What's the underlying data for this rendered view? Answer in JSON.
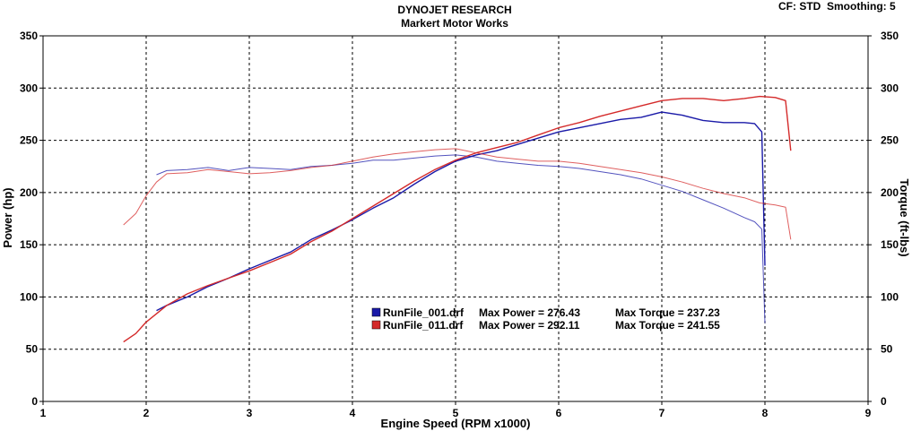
{
  "header": {
    "title": "DYNOJET RESEARCH",
    "subtitle": "Markert Motor Works",
    "cf_label": "CF: STD",
    "smoothing_label": "Smoothing: 5"
  },
  "colors": {
    "run_001": "#1a1aa8",
    "run_011": "#d42a2a",
    "grid": "#000000",
    "background": "#ffffff"
  },
  "legend": [
    {
      "file": "RunFile_001.drf",
      "power_label": "Max Power = 276.43",
      "torque_label": "Max Torque = 237.23",
      "color_key": "run_001"
    },
    {
      "file": "RunFile_011.drf",
      "power_label": "Max Power = 292.11",
      "torque_label": "Max Torque = 241.55",
      "color_key": "run_011"
    }
  ],
  "chart_data": {
    "type": "line",
    "xlabel": "Engine Speed (RPM x1000)",
    "ylabel_left": "Power (hp)",
    "ylabel_right": "Torque (ft-lbs)",
    "xlim": [
      1,
      9
    ],
    "ylim": [
      0,
      350
    ],
    "x_ticks": [
      "1",
      "2",
      "3",
      "4",
      "5",
      "6",
      "7",
      "8",
      "9"
    ],
    "y_ticks": [
      "0",
      "50",
      "100",
      "150",
      "200",
      "250",
      "300",
      "350"
    ],
    "grid": true,
    "legend_position": "center",
    "series": [
      {
        "name": "RunFile_001.drf",
        "measure": "power",
        "color_key": "run_001",
        "x": [
          2.1,
          2.2,
          2.4,
          2.6,
          2.8,
          3.0,
          3.2,
          3.4,
          3.6,
          3.8,
          4.0,
          4.2,
          4.4,
          4.6,
          4.8,
          5.0,
          5.2,
          5.4,
          5.6,
          5.8,
          6.0,
          6.2,
          6.4,
          6.6,
          6.8,
          7.0,
          7.2,
          7.4,
          7.6,
          7.8,
          7.9,
          7.97,
          8.0
        ],
        "values": [
          87,
          92,
          100,
          110,
          118,
          127,
          135,
          143,
          155,
          164,
          174,
          185,
          195,
          208,
          220,
          230,
          236,
          240,
          246,
          252,
          258,
          262,
          266,
          270,
          272,
          277,
          274,
          269,
          267,
          267,
          266,
          258,
          130
        ]
      },
      {
        "name": "RunFile_001.drf",
        "measure": "torque",
        "color_key": "run_001",
        "x": [
          2.1,
          2.2,
          2.4,
          2.6,
          2.8,
          3.0,
          3.2,
          3.4,
          3.6,
          3.8,
          4.0,
          4.2,
          4.4,
          4.6,
          4.8,
          5.0,
          5.2,
          5.4,
          5.6,
          5.8,
          6.0,
          6.2,
          6.4,
          6.6,
          6.8,
          7.0,
          7.2,
          7.4,
          7.6,
          7.8,
          7.9,
          7.97,
          8.0
        ],
        "values": [
          217,
          221,
          222,
          224,
          221,
          224,
          223,
          222,
          225,
          226,
          228,
          231,
          231,
          233,
          235,
          236,
          234,
          230,
          228,
          226,
          225,
          223,
          220,
          217,
          213,
          207,
          201,
          193,
          185,
          176,
          172,
          165,
          75
        ]
      },
      {
        "name": "RunFile_011.drf",
        "measure": "power",
        "color_key": "run_011",
        "x": [
          1.78,
          1.9,
          2.0,
          2.2,
          2.4,
          2.6,
          2.8,
          3.0,
          3.2,
          3.4,
          3.6,
          3.8,
          4.0,
          4.2,
          4.4,
          4.6,
          4.8,
          5.0,
          5.2,
          5.4,
          5.6,
          5.8,
          6.0,
          6.2,
          6.4,
          6.6,
          6.8,
          7.0,
          7.2,
          7.4,
          7.6,
          7.8,
          7.95,
          8.1,
          8.2,
          8.25
        ],
        "values": [
          57,
          65,
          76,
          92,
          103,
          111,
          118,
          125,
          133,
          141,
          153,
          163,
          175,
          187,
          199,
          211,
          222,
          231,
          238,
          243,
          248,
          255,
          262,
          267,
          273,
          278,
          283,
          288,
          290,
          290,
          288,
          290,
          292,
          291,
          288,
          240
        ]
      },
      {
        "name": "RunFile_011.drf",
        "measure": "torque",
        "color_key": "run_011",
        "x": [
          1.78,
          1.9,
          2.0,
          2.1,
          2.2,
          2.4,
          2.6,
          2.8,
          3.0,
          3.2,
          3.4,
          3.6,
          3.8,
          4.0,
          4.2,
          4.4,
          4.6,
          4.8,
          5.0,
          5.2,
          5.4,
          5.6,
          5.8,
          6.0,
          6.2,
          6.4,
          6.6,
          6.8,
          7.0,
          7.2,
          7.4,
          7.6,
          7.8,
          7.95,
          8.1,
          8.2,
          8.25
        ],
        "values": [
          169,
          180,
          197,
          210,
          218,
          219,
          222,
          220,
          218,
          219,
          221,
          224,
          226,
          230,
          234,
          237,
          239,
          241,
          242,
          238,
          234,
          232,
          230,
          230,
          228,
          225,
          222,
          219,
          215,
          210,
          204,
          199,
          195,
          190,
          188,
          186,
          155
        ]
      }
    ]
  }
}
